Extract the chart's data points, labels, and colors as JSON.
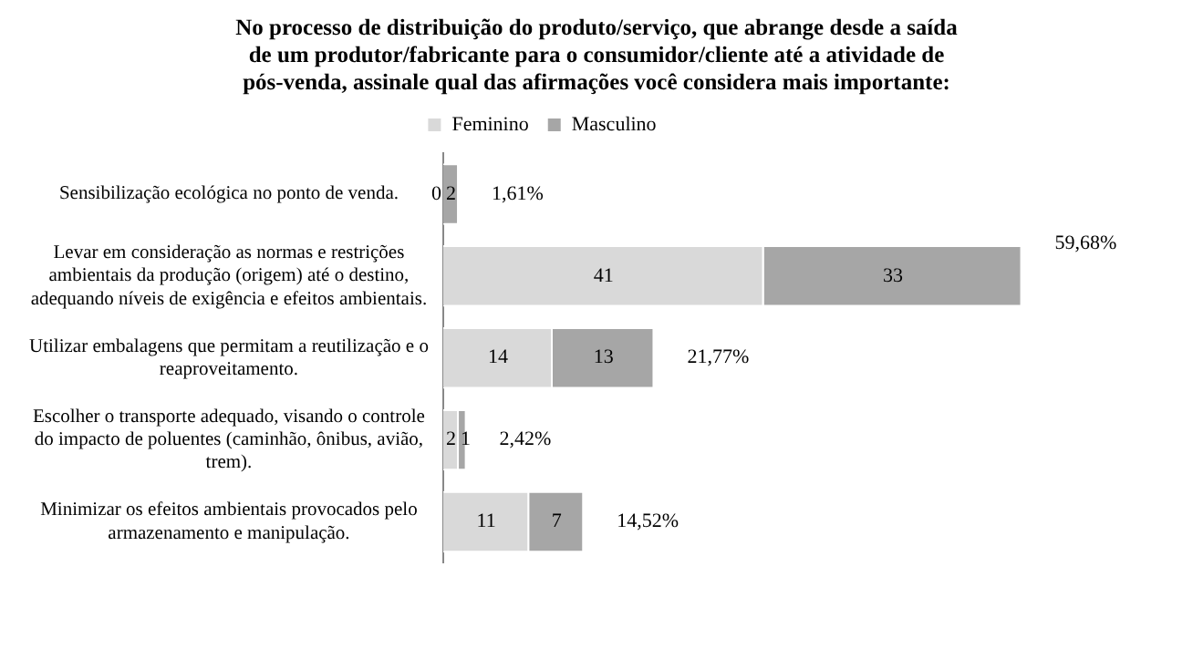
{
  "chart_data": {
    "type": "bar",
    "orientation": "horizontal",
    "stacked": true,
    "title": "No processo de distribuição do produto/serviço, que abrange desde a saída de um produtor/fabricante para o consumidor/cliente até a atividade de pós-venda, assinale qual das afirmações você considera mais importante:",
    "categories": [
      "Sensibilização ecológica no ponto de venda.",
      "Levar em consideração as normas e restrições ambientais da produção (origem) até o destino, adequando níveis de exigência e efeitos ambientais.",
      "Utilizar embalagens que permitam a reutilização e o reaproveitamento.",
      "Escolher o transporte adequado, visando o controle do impacto de poluentes (caminhão, ônibus, avião, trem).",
      "Minimizar os efeitos ambientais provocados pelo armazenamento e manipulação."
    ],
    "series": [
      {
        "name": "Feminino",
        "color": "#d9d9d9",
        "values": [
          0,
          41,
          14,
          2,
          11
        ]
      },
      {
        "name": "Masculino",
        "color": "#a6a6a6",
        "values": [
          2,
          33,
          13,
          1,
          7
        ]
      }
    ],
    "data_labels": true,
    "legend": "top",
    "grid": false,
    "annotations": [
      {
        "text": "1,61%",
        "x": 2,
        "y": "Sensibilização ecológica no ponto de venda."
      },
      {
        "text": "59,68%",
        "x": 74,
        "y": "Levar em consideração as normas e restrições ambientais da produção (origem) até o destino, adequando níveis de exigência e efeitos ambientais."
      },
      {
        "text": "21,77%",
        "x": 27,
        "y": "Utilizar embalagens que permitam a reutilização e o reaproveitamento."
      },
      {
        "text": "2,42%",
        "x": 3,
        "y": "Escolher o transporte adequado, visando o controle do impacto de poluentes (caminhão, ônibus, avião, trem)."
      },
      {
        "text": "14,52%",
        "x": 18,
        "y": "Minimizar os efeitos ambientais provocados pelo armazenamento e manipulação."
      }
    ]
  }
}
